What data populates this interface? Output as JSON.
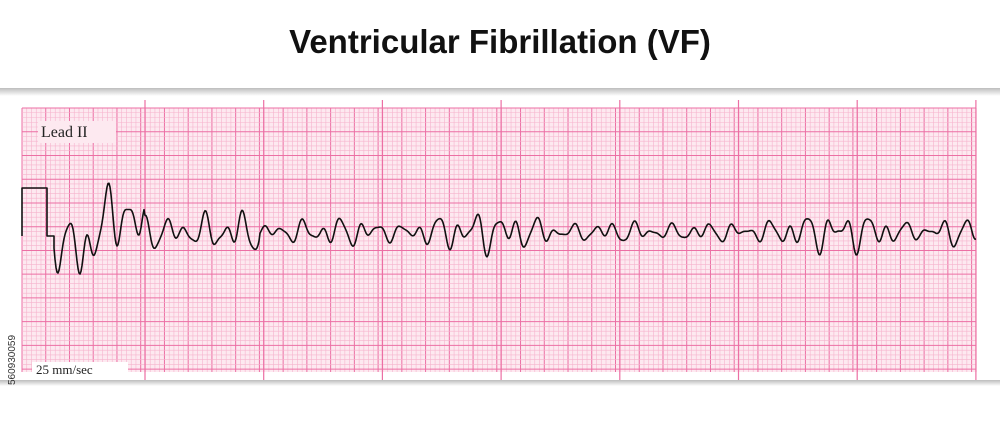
{
  "header": {
    "title": "Ventricular Fibrillation (VF)"
  },
  "strip": {
    "lead": "Lead II",
    "speed": "25 mm/sec"
  },
  "side_id": "560930059"
}
